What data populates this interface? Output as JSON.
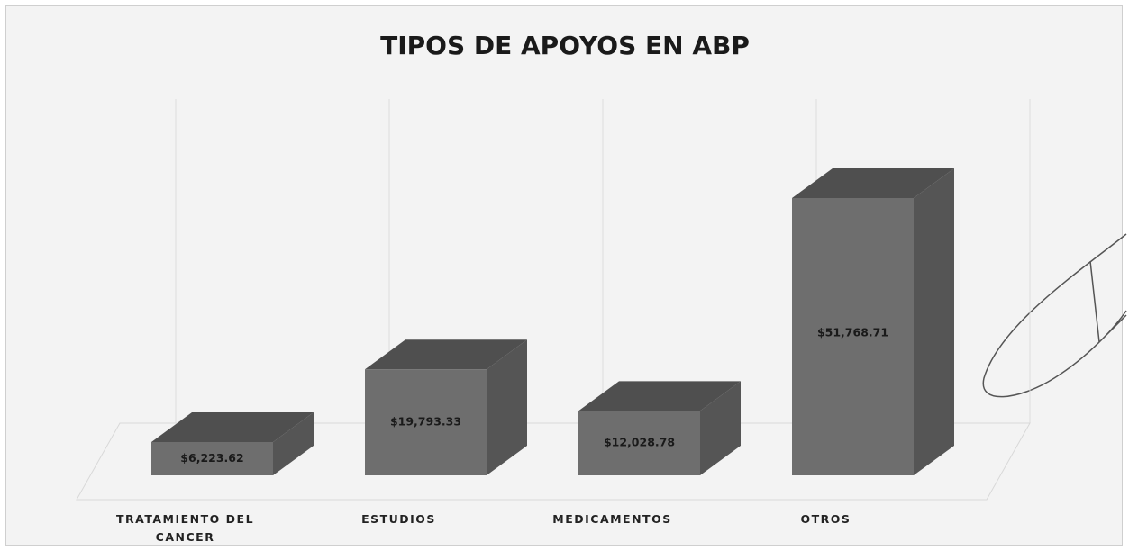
{
  "chart_data": {
    "type": "bar3d",
    "title": "TIPOS DE APOYOS EN ABP",
    "categories": [
      "TRATAMIENTO DEL CANCER",
      "ESTUDIOS",
      "MEDICAMENTOS",
      "OTROS"
    ],
    "values": [
      6223.62,
      19793.33,
      12028.78,
      51768.71
    ],
    "value_labels": [
      "$6,223.62",
      "$19,793.33",
      "$12,028.78",
      "$51,768.71"
    ],
    "color": "#6e6e6e"
  }
}
